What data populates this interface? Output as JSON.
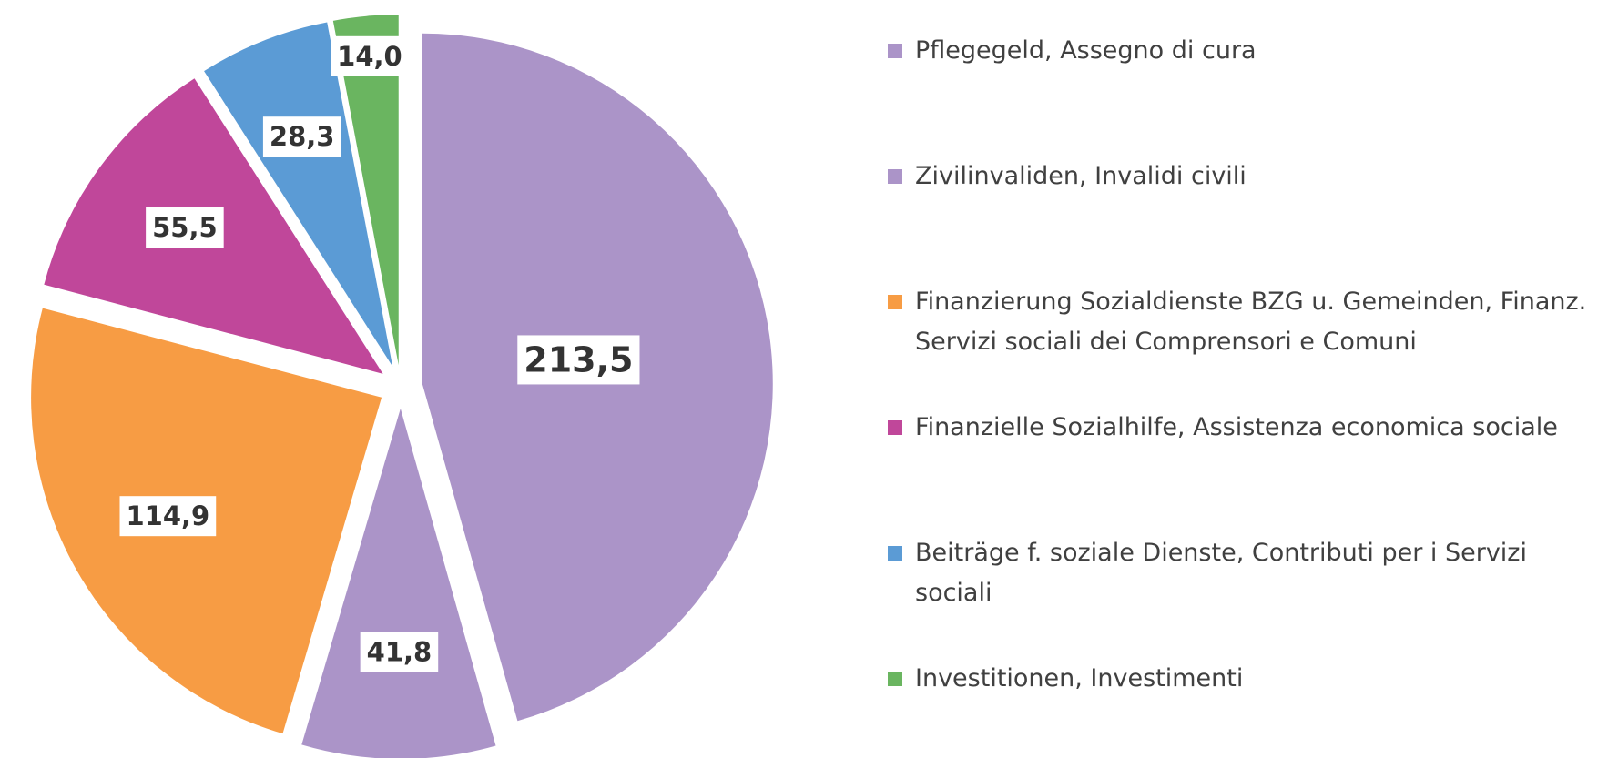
{
  "chart_data": {
    "type": "pie",
    "categories": [
      "Pflegegeld, Assegno di cura",
      "Zivilinvaliden, Invalidi civili",
      "Finanzierung Sozialdienste BZG u. Gemeinden, Finanz. Servizi sociali dei Comprensori e Comuni",
      "Finanzielle Sozialhilfe, Assistenza economica sociale",
      "Beiträge f. soziale Dienste, Contributi per i Servizi sociali",
      "Investitionen, Investimenti"
    ],
    "values": [
      213.5,
      41.8,
      114.9,
      55.5,
      28.3,
      14.0
    ],
    "value_labels": [
      "213,5",
      "41,8",
      "114,9",
      "55,5",
      "28,3",
      "14,0"
    ],
    "colors": [
      "#ab94c8",
      "#ab94c8",
      "#f79c44",
      "#c0479a",
      "#5b9bd5",
      "#6ab560"
    ],
    "legend": "right"
  }
}
